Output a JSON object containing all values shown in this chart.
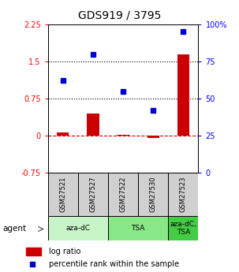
{
  "title": "GDS919 / 3795",
  "samples": [
    "GSM27521",
    "GSM27527",
    "GSM27522",
    "GSM27530",
    "GSM27523"
  ],
  "log_ratio": [
    0.07,
    0.45,
    0.02,
    -0.04,
    1.65
  ],
  "percentile_rank": [
    62,
    80,
    55,
    42,
    95
  ],
  "ylim_left": [
    -0.75,
    2.25
  ],
  "ylim_right": [
    0,
    100
  ],
  "left_ticks": [
    -0.75,
    0,
    0.75,
    1.5,
    2.25
  ],
  "left_tick_labels": [
    "-0.75",
    "0",
    "0.75",
    "1.5",
    "2.25"
  ],
  "right_ticks": [
    0,
    25,
    50,
    75,
    100
  ],
  "right_tick_labels": [
    "0",
    "25",
    "50",
    "75",
    "100%"
  ],
  "hlines": [
    0.75,
    1.5
  ],
  "agent_groups": [
    {
      "label": "aza-dC",
      "start": 0,
      "end": 2,
      "color": "#c8f5c8"
    },
    {
      "label": "TSA",
      "start": 2,
      "end": 4,
      "color": "#88e888"
    },
    {
      "label": "aza-dC,\nTSA",
      "start": 4,
      "end": 5,
      "color": "#44cc44"
    }
  ],
  "bar_color": "#cc0000",
  "dot_color": "#0000cc",
  "dashed_zero_color": "#cc0000",
  "background_plot": "#ffffff",
  "sample_box_color": "#d0d0d0",
  "title_fontsize": 10,
  "tick_fontsize": 7,
  "label_fontsize": 7.5
}
